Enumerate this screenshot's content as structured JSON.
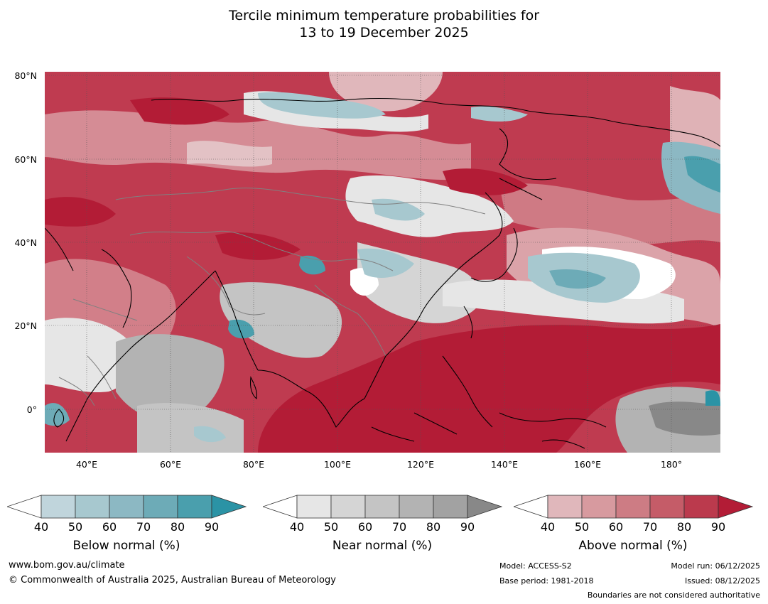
{
  "title": {
    "line1": "Tercile minimum temperature probabilities for",
    "line2": "13 to 19 December 2025"
  },
  "map": {
    "lat_labels": [
      "80°N",
      "60°N",
      "40°N",
      "20°N",
      "0°"
    ],
    "lon_labels": [
      "40°E",
      "60°E",
      "80°E",
      "100°E",
      "120°E",
      "140°E",
      "160°E",
      "180°"
    ],
    "extent": {
      "lon_min": 30,
      "lon_max": 192,
      "lat_min": -10,
      "lat_max": 81
    }
  },
  "legends": [
    {
      "name": "Below normal (%)",
      "ticks": [
        "40",
        "50",
        "60",
        "70",
        "80",
        "90"
      ],
      "colors": [
        "#c0d5dc",
        "#a7c8cf",
        "#8cb8c3",
        "#6dabb7",
        "#4a9fad",
        "#2b93a5"
      ]
    },
    {
      "name": "Near normal (%)",
      "ticks": [
        "40",
        "50",
        "60",
        "70",
        "80",
        "90"
      ],
      "colors": [
        "#e6e6e6",
        "#d5d5d5",
        "#c4c4c4",
        "#b3b3b3",
        "#a2a2a2",
        "#888888"
      ]
    },
    {
      "name": "Above normal (%)",
      "ticks": [
        "40",
        "50",
        "60",
        "70",
        "80",
        "90"
      ],
      "colors": [
        "#e0b7bb",
        "#d79a9f",
        "#cd7c84",
        "#c55c68",
        "#bb3a4d",
        "#b31c36"
      ]
    }
  ],
  "footer": {
    "website": "www.bom.gov.au/climate",
    "copyright": "© Commonwealth of Australia 2025, Australian Bureau of Meteorology",
    "model": "Model: ACCESS-S2",
    "base_period": "Base period: 1981-2018",
    "model_run": "Model run: 06/12/2025",
    "issued": "Issued: 08/12/2025",
    "disclaimer": "Boundaries are not considered authoritative"
  }
}
